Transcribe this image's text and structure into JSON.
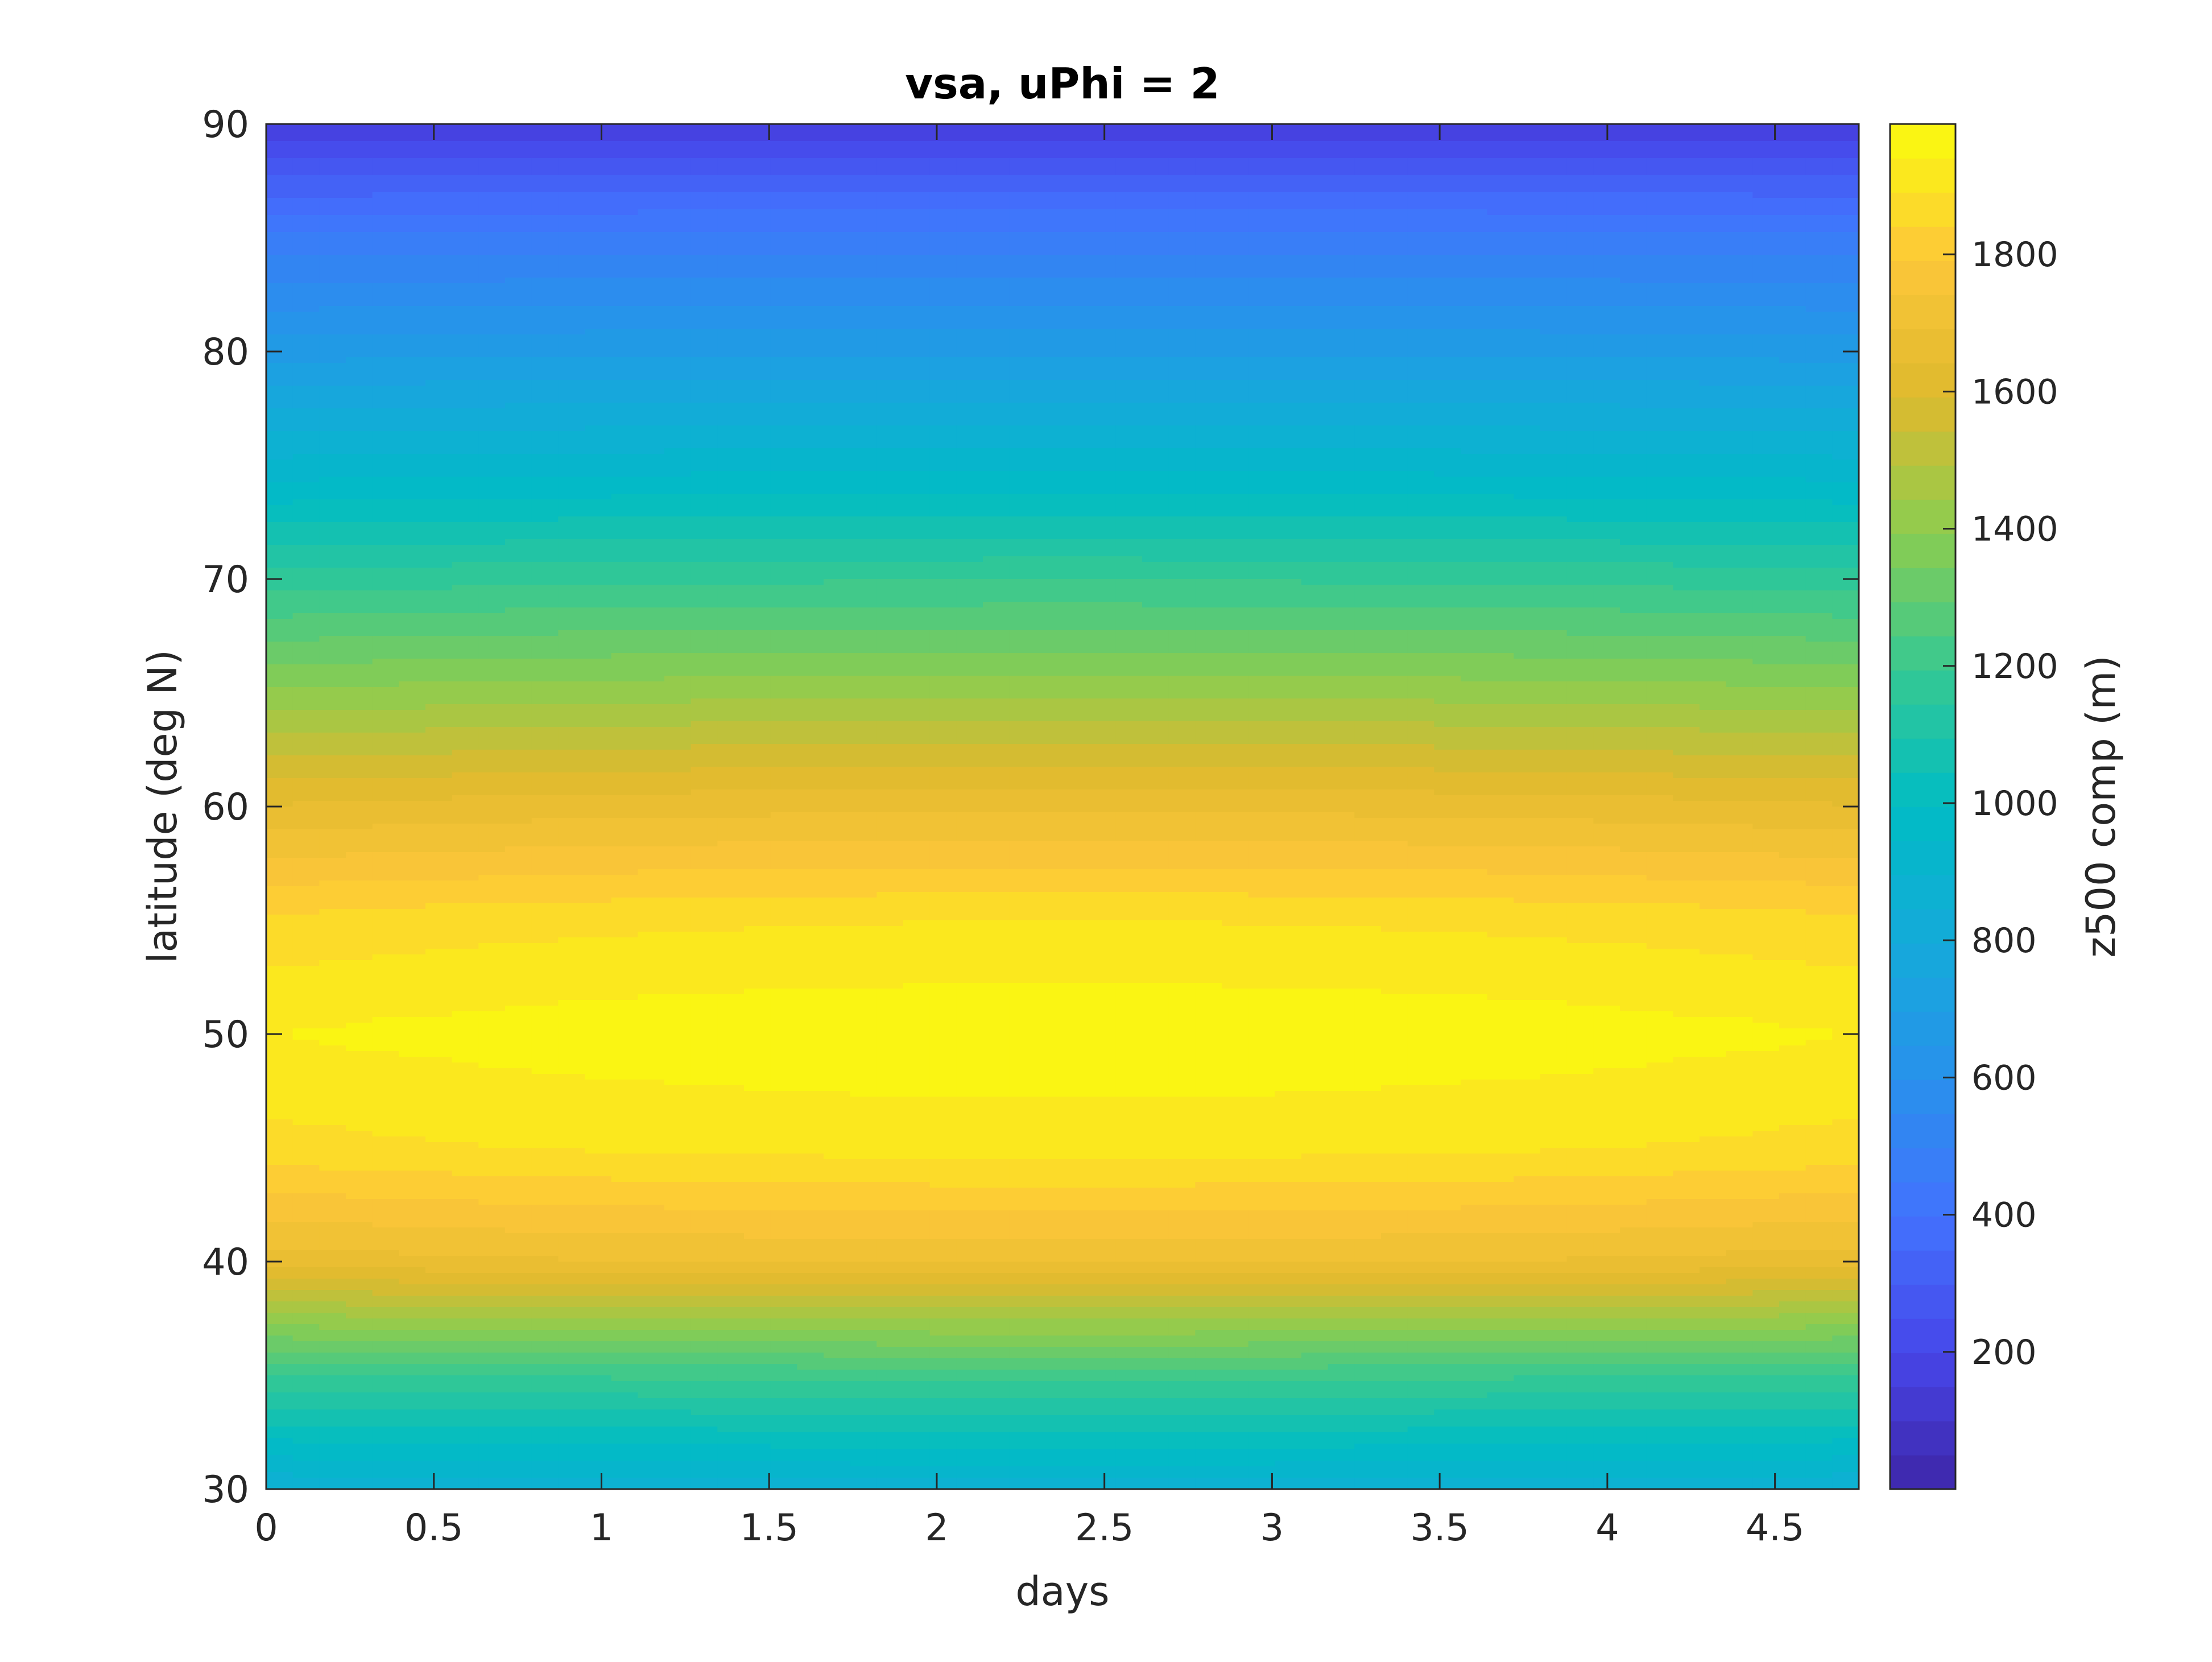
{
  "chart_data": {
    "type": "heatmap",
    "plot_style": "filled-contour",
    "title": "vsa, uPhi = 2",
    "xlabel": "days",
    "ylabel": "latitude (deg N)",
    "xlim": [
      0,
      4.75
    ],
    "ylim": [
      30,
      90
    ],
    "xticks": [
      "0",
      "0.5",
      "1",
      "1.5",
      "2",
      "2.5",
      "3",
      "3.5",
      "4",
      "4.5"
    ],
    "yticks": [
      "30",
      "40",
      "50",
      "60",
      "70",
      "80",
      "90"
    ],
    "x_tick_values": [
      0,
      0.5,
      1,
      1.5,
      2,
      2.5,
      3,
      3.5,
      4,
      4.5
    ],
    "y_tick_values": [
      30,
      40,
      50,
      60,
      70,
      80,
      90
    ],
    "colorbar": {
      "label": "z500 comp (m)",
      "range": [
        0,
        1990
      ],
      "ticks": [
        "200",
        "400",
        "600",
        "800",
        "1000",
        "1200",
        "1400",
        "1600",
        "1800"
      ],
      "tick_values": [
        200,
        400,
        600,
        800,
        1000,
        1200,
        1400,
        1600,
        1800
      ],
      "colormap": "parula"
    },
    "field_samples": {
      "note_type": "latitude profile at mid-period (approx day 2.4)",
      "latitude": [
        30,
        35,
        40,
        45,
        50,
        55,
        60,
        65,
        70,
        75,
        80,
        85,
        90
      ],
      "value": [
        870,
        1210,
        1700,
        1910,
        1980,
        1890,
        1680,
        1430,
        1190,
        930,
        690,
        470,
        160
      ]
    },
    "grid": false,
    "colorbar_position": "right"
  }
}
